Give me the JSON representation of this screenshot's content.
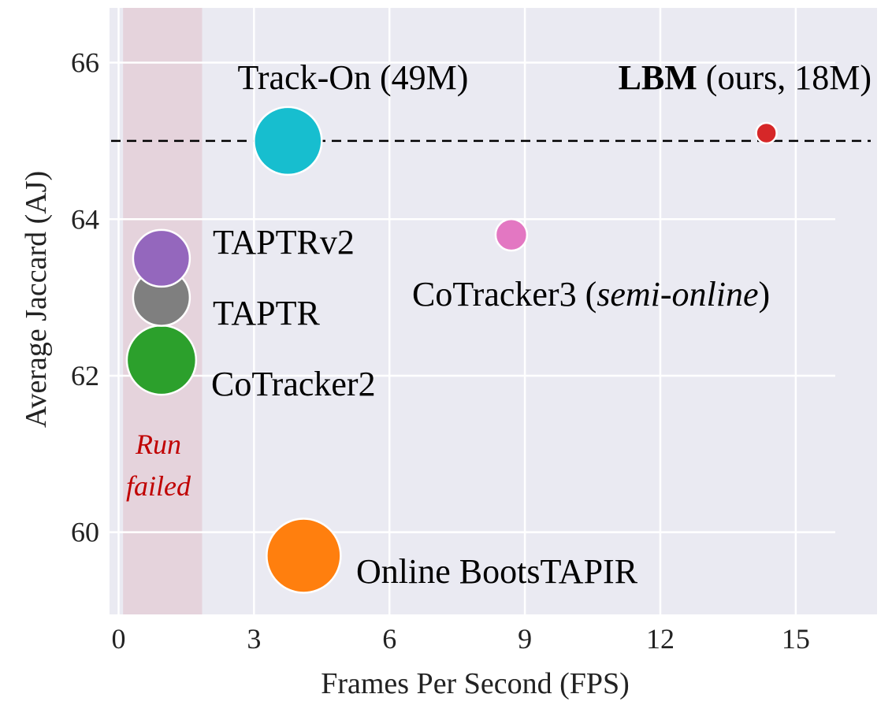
{
  "chart_data": {
    "type": "scatter",
    "xlabel": "Frames Per Second (FPS)",
    "ylabel": "Average Jaccard (AJ)",
    "xlim": [
      -0.2,
      16.8
    ],
    "ylim": [
      58.95,
      66.7
    ],
    "xticks": [
      0,
      3,
      6,
      9,
      12,
      15
    ],
    "yticks": [
      60,
      62,
      64,
      66
    ],
    "grid": true,
    "background": "#eaeaf2",
    "reference_line": {
      "y": 65.0,
      "style": "dashed",
      "color": "#000000"
    },
    "shaded_region": {
      "x": [
        0.1,
        1.85
      ],
      "color": "#e5d3dc",
      "label_lines": [
        "Run",
        "failed"
      ],
      "label_color": "#c00000"
    },
    "points": [
      {
        "id": "track-on",
        "x": 3.75,
        "y": 65.0,
        "params_m": 49,
        "color": "#17becf",
        "label": "Track-On (49M)",
        "label_pos": "above"
      },
      {
        "id": "lbm",
        "x": 14.35,
        "y": 65.1,
        "params_m": 18,
        "color": "#d62728",
        "label_bold": "LBM",
        "label_rest": " (ours, 18M)",
        "label_pos": "above-left"
      },
      {
        "id": "cotracker3",
        "x": 8.7,
        "y": 63.8,
        "color": "#e377c2",
        "label_pre": "CoTracker3 (",
        "label_italic": "semi-online",
        "label_post": ")",
        "label_pos": "below"
      },
      {
        "id": "taptrv2",
        "x": 0.95,
        "y": 63.5,
        "color": "#9467bd",
        "label": "TAPTRv2",
        "label_pos": "right"
      },
      {
        "id": "taptr",
        "x": 0.95,
        "y": 63.0,
        "color": "#7f7f7f",
        "label": "TAPTR",
        "label_pos": "right"
      },
      {
        "id": "cotracker2",
        "x": 0.95,
        "y": 62.2,
        "color": "#2ca02c",
        "label": "CoTracker2",
        "label_pos": "right"
      },
      {
        "id": "online-bootstapir",
        "x": 4.1,
        "y": 59.7,
        "color": "#ff7f0e",
        "label": "Online BootsTAPIR",
        "label_pos": "right"
      }
    ]
  }
}
